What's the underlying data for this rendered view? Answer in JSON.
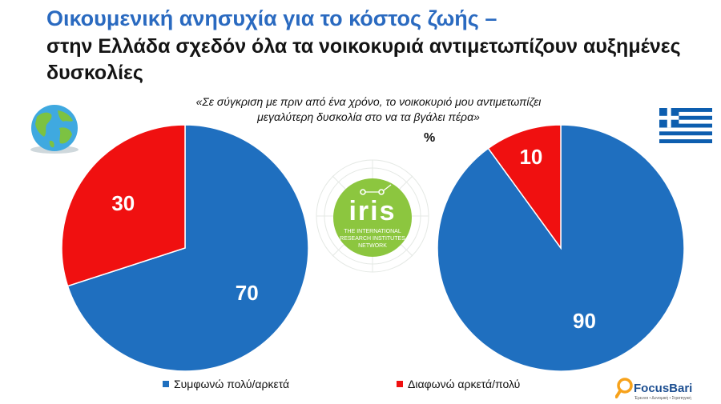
{
  "title": "Οικουμενική ανησυχία για το κόστος ζωής –",
  "subtitle": "στην Ελλάδα σχεδόν όλα τα νοικοκυριά αντιμετωπίζουν αυξημένες δυσκολίες",
  "question_line1": "«Σε σύγκριση με πριν από ένα χρόνο, το νοικοκυριό μου αντιμετωπίζει",
  "question_line2": "μεγαλύτερη δυσκολία στο να τα βγάλει πέρα»",
  "unit": "%",
  "colors": {
    "agree": "#1f6fbf",
    "disagree": "#f01010",
    "title": "#2a6ac0"
  },
  "icons": {
    "world": "globe-icon",
    "greece": "greek-flag-icon"
  },
  "logos": {
    "iris_word": "iris",
    "iris_line1": "THE INTERNATIONAL",
    "iris_line2": "RESEARCH INSTITUTES",
    "iris_line3": "NETWORK",
    "focus_name": "FocusBari",
    "focus_tagline": "Έρευνα • Δυναμική • Στρατηγική"
  },
  "legend": [
    "Συμφωνώ πολύ/αρκετά",
    "Διαφωνώ αρκετά/πολύ"
  ],
  "chart_data": [
    {
      "type": "pie",
      "legend_position": "bottom",
      "slices": [
        {
          "label": "Συμφωνώ πολύ/αρκετά",
          "value": 70,
          "color": "#1f6fbf"
        },
        {
          "label": "Διαφωνώ αρκετά/πολύ",
          "value": 30,
          "color": "#f01010"
        }
      ]
    },
    {
      "type": "pie",
      "legend_position": "bottom",
      "slices": [
        {
          "label": "Συμφωνώ πολύ/αρκετά",
          "value": 90,
          "color": "#1f6fbf"
        },
        {
          "label": "Διαφωνώ αρκετά/πολύ",
          "value": 10,
          "color": "#f01010"
        }
      ]
    }
  ]
}
